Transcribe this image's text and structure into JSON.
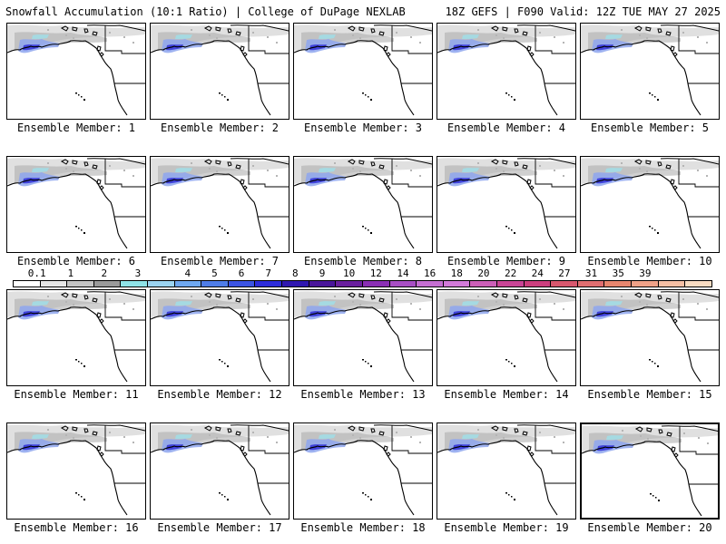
{
  "header": {
    "left": "Snowfall Accumulation (10:1 Ratio) | College of DuPage NEXLAB",
    "right": "18Z GEFS | F090 Valid: 12Z TUE MAY 27 2025"
  },
  "members": [
    {
      "label": "Ensemble Member: 1"
    },
    {
      "label": "Ensemble Member: 2"
    },
    {
      "label": "Ensemble Member: 3"
    },
    {
      "label": "Ensemble Member: 4"
    },
    {
      "label": "Ensemble Member: 5"
    },
    {
      "label": "Ensemble Member: 6"
    },
    {
      "label": "Ensemble Member: 7"
    },
    {
      "label": "Ensemble Member: 8"
    },
    {
      "label": "Ensemble Member: 9"
    },
    {
      "label": "Ensemble Member: 10"
    },
    {
      "label": "Ensemble Member: 11"
    },
    {
      "label": "Ensemble Member: 12"
    },
    {
      "label": "Ensemble Member: 13"
    },
    {
      "label": "Ensemble Member: 14"
    },
    {
      "label": "Ensemble Member: 15"
    },
    {
      "label": "Ensemble Member: 16"
    },
    {
      "label": "Ensemble Member: 17"
    },
    {
      "label": "Ensemble Member: 18"
    },
    {
      "label": "Ensemble Member: 19"
    },
    {
      "label": "Ensemble Member: 20"
    }
  ],
  "selected_member": 20,
  "colorbar": {
    "ticks": [
      "0.1",
      "1",
      "2",
      "3",
      "4",
      "5",
      "6",
      "7",
      "8",
      "9",
      "10",
      "12",
      "14",
      "16",
      "18",
      "20",
      "22",
      "24",
      "27",
      "31",
      "35",
      "39"
    ],
    "colors": [
      "#ffffff",
      "#e6e6e6",
      "#c4c4c4",
      "#9a9a9a",
      "#8ee3e8",
      "#9bd4f2",
      "#6fa8f0",
      "#4f7de8",
      "#3c54e3",
      "#2e2ddc",
      "#3018b0",
      "#4a169a",
      "#6a209e",
      "#8a2fb4",
      "#a84fc4",
      "#c56fd2",
      "#d27ad9",
      "#cc5fb8",
      "#c94596",
      "#cc3f7e",
      "#d8586e",
      "#e06e70",
      "#e8866e",
      "#f0a288",
      "#f5bfa4",
      "#f9dcc2"
    ]
  }
}
